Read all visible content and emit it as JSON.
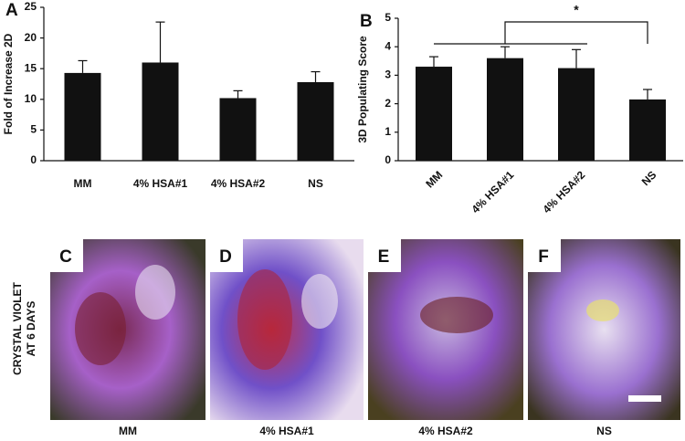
{
  "chart_data": [
    {
      "type": "bar",
      "panel": "A",
      "ylabel": "Fold of Increase 2D",
      "categories": [
        "MM",
        "4% HSA#1",
        "4% HSA#2",
        "NS"
      ],
      "values": [
        14.3,
        16,
        10.2,
        12.8
      ],
      "errors": [
        2,
        6.6,
        1.2,
        1.7
      ],
      "color": "#111111",
      "ylim": [
        0,
        25
      ],
      "yticks": [
        0,
        5,
        10,
        15,
        20,
        25
      ]
    },
    {
      "type": "bar",
      "panel": "B",
      "ylabel": "3D Populating Score",
      "categories": [
        "MM",
        "4% HSA#1",
        "4% HSA#2",
        "NS"
      ],
      "values": [
        3.3,
        3.6,
        3.25,
        2.15
      ],
      "errors": [
        0.35,
        0.4,
        0.65,
        0.35
      ],
      "color": "#111111",
      "ylim": [
        0,
        5
      ],
      "yticks": [
        0,
        1,
        2,
        3,
        4,
        5
      ],
      "annotation": "*"
    }
  ],
  "photos": {
    "side_label": [
      "CRYSTAL VIOLET",
      "AT 6 DAYS"
    ],
    "panels": [
      {
        "letter": "C",
        "caption": "MM"
      },
      {
        "letter": "D",
        "caption": "4% HSA#1"
      },
      {
        "letter": "E",
        "caption": "4% HSA#2"
      },
      {
        "letter": "F",
        "caption": "NS"
      }
    ]
  }
}
